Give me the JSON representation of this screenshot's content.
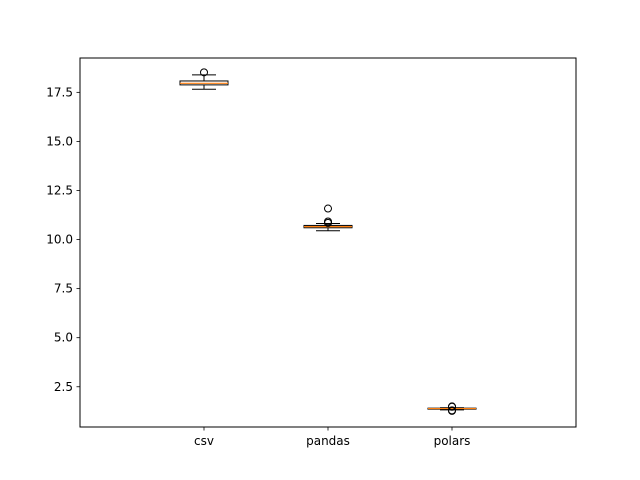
{
  "chart_data": {
    "type": "box",
    "categories": [
      "csv",
      "pandas",
      "polars"
    ],
    "ylim": [
      0.45,
      19.25
    ],
    "yticks": [
      "2.5",
      "5.0",
      "7.5",
      "10.0",
      "12.5",
      "15.0",
      "17.5"
    ],
    "grid": false,
    "boxes": [
      {
        "name": "csv",
        "whislo": 17.66,
        "q1": 17.88,
        "med": 17.96,
        "q3": 18.08,
        "whishi": 18.39,
        "fliers": [
          18.52
        ]
      },
      {
        "name": "pandas",
        "whislo": 10.45,
        "q1": 10.6,
        "med": 10.66,
        "q3": 10.72,
        "whishi": 10.82,
        "fliers": [
          10.85,
          10.92,
          11.58
        ]
      },
      {
        "name": "polars",
        "whislo": 1.32,
        "q1": 1.36,
        "med": 1.39,
        "q3": 1.41,
        "whishi": 1.43,
        "fliers": [
          1.27,
          1.3,
          1.48,
          1.5
        ]
      }
    ],
    "colors": {
      "box": "#000000",
      "median": "#ff7f0e",
      "flier": "#000000"
    }
  }
}
